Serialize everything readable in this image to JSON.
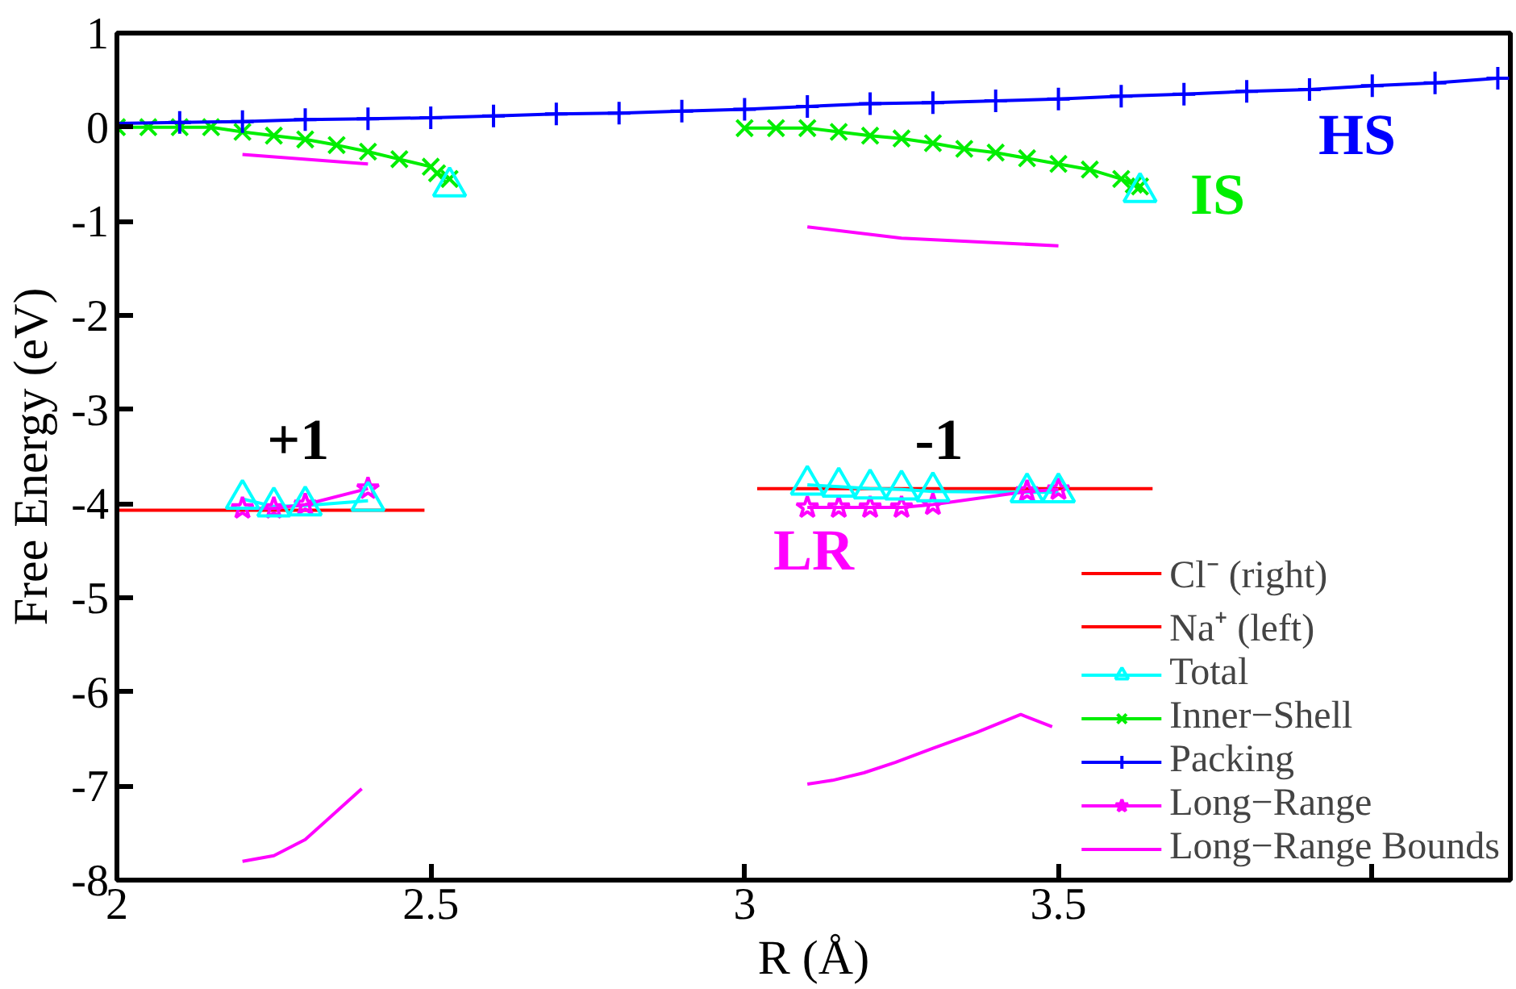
{
  "chart_data": {
    "type": "line",
    "xlabel": "R (Å)",
    "ylabel": "Free Energy (eV)",
    "xlim": [
      2,
      4.22
    ],
    "ylim": [
      -8,
      1
    ],
    "xticks": [
      2,
      2.5,
      3,
      3.5,
      {
        "value": 4,
        "label": null
      }
    ],
    "yticks": [
      1,
      0,
      -1,
      -2,
      -3,
      -4,
      -5,
      -6,
      -7,
      -8
    ],
    "legend": "bottom right",
    "annotations": [
      "HS",
      "IS",
      "+1",
      "-1",
      "LR"
    ],
    "series": [
      {
        "name": "Cl⁻ (right)",
        "color": "#ff0000",
        "marker": "none",
        "x": [
          3.02,
          3.65
        ],
        "values": [
          -3.84,
          -3.84
        ]
      },
      {
        "name": "Na⁺ (left)",
        "color": "#ff0000",
        "marker": "none",
        "x": [
          2.0,
          2.49
        ],
        "values": [
          -4.07,
          -4.07
        ]
      },
      {
        "name": "Total",
        "color": "#00ffff",
        "marker": "triangle",
        "x": [
          2.2,
          2.25,
          2.3,
          2.4,
          2.45,
          2.53,
          2.6,
          3.1,
          3.15,
          3.2,
          3.25,
          3.3,
          3.45,
          3.5,
          3.55,
          3.63
        ],
        "values": [
          -3.95,
          -4.03,
          -4.02,
          -3.97,
          null,
          -0.63,
          null,
          -3.8,
          -3.82,
          -3.84,
          -3.85,
          -3.87,
          -3.88,
          -3.88,
          null,
          -0.69
        ]
      },
      {
        "name": "Inner−Shell",
        "color": "#00ee00",
        "marker": "x",
        "x": [
          2.0,
          2.05,
          2.1,
          2.15,
          2.2,
          2.25,
          2.3,
          2.35,
          2.4,
          2.45,
          2.5,
          2.51,
          2.53,
          2.7,
          3.0,
          3.05,
          3.1,
          3.15,
          3.2,
          3.25,
          3.3,
          3.35,
          3.4,
          3.45,
          3.5,
          3.55,
          3.6,
          3.62,
          3.63
        ],
        "values": [
          0.0,
          0.0,
          0.0,
          0.0,
          -0.05,
          -0.09,
          -0.13,
          -0.19,
          -0.26,
          -0.34,
          -0.42,
          -0.49,
          -0.55,
          null,
          -0.01,
          -0.01,
          -0.01,
          -0.05,
          -0.09,
          -0.12,
          -0.17,
          -0.23,
          -0.27,
          -0.33,
          -0.39,
          -0.45,
          -0.55,
          -0.61,
          -0.63
        ]
      },
      {
        "name": "Packing",
        "color": "#0000ff",
        "marker": "cross",
        "x": [
          2.0,
          2.1,
          2.2,
          2.3,
          2.4,
          2.5,
          2.6,
          2.7,
          2.8,
          2.9,
          3.0,
          3.1,
          3.2,
          3.3,
          3.4,
          3.5,
          3.6,
          3.7,
          3.8,
          3.9,
          4.0,
          4.1,
          4.2
        ],
        "values": [
          0.04,
          0.05,
          0.06,
          0.08,
          0.09,
          0.1,
          0.12,
          0.14,
          0.15,
          0.17,
          0.19,
          0.22,
          0.25,
          0.26,
          0.28,
          0.3,
          0.33,
          0.35,
          0.38,
          0.4,
          0.44,
          0.47,
          0.52
        ]
      },
      {
        "name": "Long−Range",
        "color": "#ff00ff",
        "marker": "star",
        "x": [
          2.2,
          2.25,
          2.3,
          2.4,
          2.7,
          3.1,
          3.15,
          3.2,
          3.25,
          3.3,
          3.45,
          3.5
        ],
        "values": [
          -4.05,
          -4.05,
          -4.01,
          -3.84,
          null,
          -4.04,
          -4.04,
          -4.04,
          -4.04,
          -4.01,
          -3.87,
          -3.85
        ]
      },
      {
        "name": "Long−Range Bounds",
        "color": "#ff00ff",
        "marker": "none",
        "x": [
          2.2,
          2.4,
          2.7,
          3.1,
          3.25,
          3.5,
          2.9,
          2.2,
          2.25,
          2.3,
          2.39,
          2.7,
          3.1,
          3.14,
          3.19,
          3.24,
          3.3,
          3.37,
          3.44,
          3.49
        ],
        "values": [
          -0.29,
          -0.39,
          null,
          -1.06,
          -1.18,
          -1.26,
          null,
          -7.8,
          -7.74,
          -7.57,
          -7.03,
          null,
          -6.98,
          -6.94,
          -6.86,
          -6.75,
          -6.6,
          -6.43,
          -6.24,
          -6.37
        ]
      }
    ]
  }
}
